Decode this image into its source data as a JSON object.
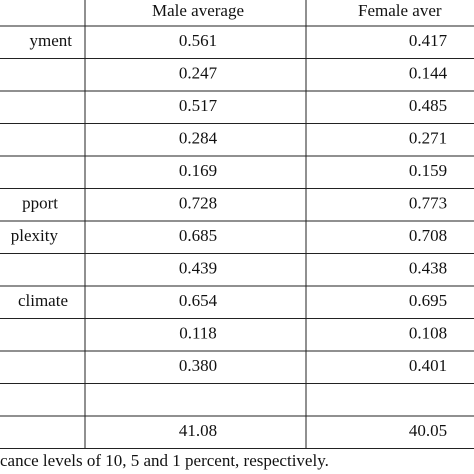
{
  "table": {
    "header": [
      "Male average",
      "Female aver"
    ],
    "rows": [
      {
        "label": "yment",
        "cells": [
          "0.561",
          "0.417"
        ]
      },
      {
        "label": null,
        "cells": [
          "0.247",
          "0.144"
        ]
      },
      {
        "label": null,
        "cells": [
          "0.517",
          "0.485"
        ]
      },
      {
        "label": null,
        "cells": [
          "0.284",
          "0.271"
        ]
      },
      {
        "label": null,
        "cells": [
          "0.169",
          "0.159"
        ]
      },
      {
        "label": "pport",
        "cells": [
          "0.728",
          "0.773"
        ]
      },
      {
        "label": "plexity",
        "cells": [
          "0.685",
          "0.708"
        ]
      },
      {
        "label": null,
        "cells": [
          "0.439",
          "0.438"
        ]
      },
      {
        "label": "climate",
        "cells": [
          "0.654",
          "0.695"
        ]
      },
      {
        "label": null,
        "cells": [
          "0.118",
          "0.108"
        ]
      },
      {
        "label": null,
        "cells": [
          "0.380",
          "0.401"
        ]
      },
      {
        "label": null,
        "cells": [
          null,
          null
        ]
      },
      {
        "label": null,
        "cells": [
          "41.08",
          "40.05"
        ]
      }
    ]
  },
  "footnote": "cance levels of 10, 5 and 1 percent, respectively."
}
